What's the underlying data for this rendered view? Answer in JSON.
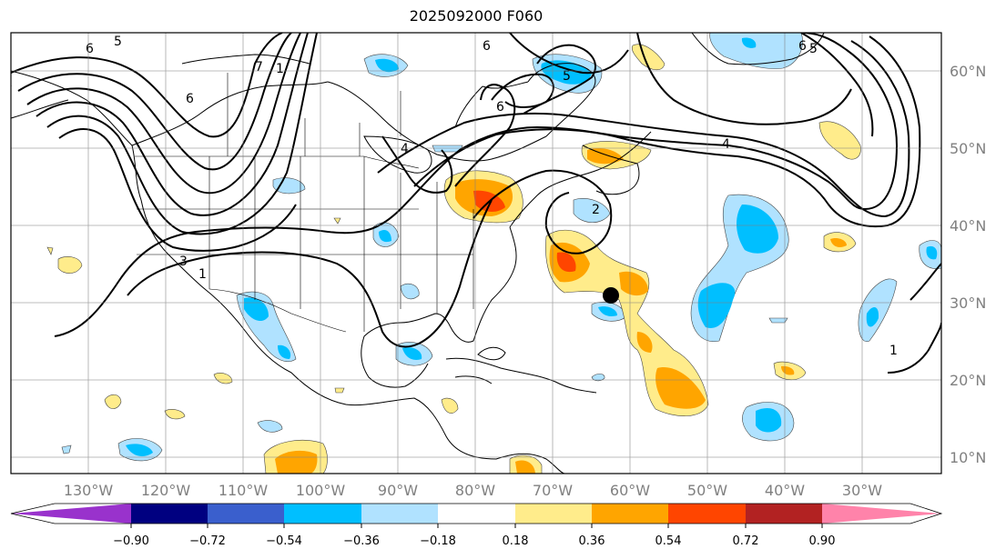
{
  "title": "2025092000 F060",
  "map": {
    "longitude_labels": [
      "130°W",
      "120°W",
      "110°W",
      "100°W",
      "90°W",
      "80°W",
      "70°W",
      "60°W",
      "50°W",
      "40°W",
      "30°W"
    ],
    "latitude_labels": [
      "60°N",
      "50°N",
      "40°N",
      "30°N",
      "20°N",
      "10°N"
    ],
    "contour_labels": [
      "5",
      "6",
      "7",
      "1",
      "6",
      "6",
      "6",
      "4",
      "4",
      "5",
      "2",
      "3",
      "1",
      "6",
      "5",
      "1"
    ],
    "marker": "black-dot"
  },
  "colorbar": {
    "ticks": [
      "−0.90",
      "−0.72",
      "−0.54",
      "−0.36",
      "−0.18",
      "0.18",
      "0.36",
      "0.54",
      "0.72",
      "0.90"
    ],
    "colors": [
      "#9932cc",
      "#000080",
      "#3a5fcd",
      "#00bfff",
      "#b0e2ff",
      "#ffffff",
      "#ffec8b",
      "#ffa500",
      "#ff4500",
      "#b22222",
      "#ff83aa"
    ],
    "extend": "both"
  }
}
